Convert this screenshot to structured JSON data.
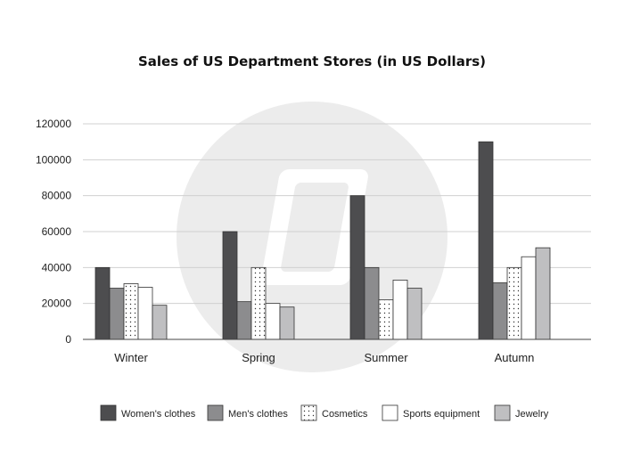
{
  "chart_data": {
    "type": "bar",
    "title": "Sales of US Department Stores (in US Dollars)",
    "xlabel": "",
    "ylabel": "",
    "categories": [
      "Winter",
      "Spring",
      "Summer",
      "Autumn"
    ],
    "ylim": [
      0,
      120000
    ],
    "yticks": [
      "0",
      "20000",
      "40000",
      "60000",
      "80000",
      "100000",
      "120000"
    ],
    "grid": true,
    "legend_position": "bottom",
    "series": [
      {
        "name": "Women's clothes",
        "values": [
          40000,
          60000,
          80000,
          110000
        ],
        "color": "#4d4d4f",
        "pattern": "solid"
      },
      {
        "name": "Men's clothes",
        "values": [
          28500,
          21000,
          40000,
          31500
        ],
        "color": "#8c8c8e",
        "pattern": "solid"
      },
      {
        "name": "Cosmetics",
        "values": [
          31000,
          40000,
          22000,
          40000
        ],
        "color": "#ffffff",
        "pattern": "dots"
      },
      {
        "name": "Sports equipment",
        "values": [
          29000,
          20000,
          33000,
          46000
        ],
        "color": "#ffffff",
        "pattern": "solid"
      },
      {
        "name": "Jewelry",
        "values": [
          19000,
          18000,
          28500,
          51000
        ],
        "color": "#bfbfc1",
        "pattern": "solid"
      }
    ]
  }
}
